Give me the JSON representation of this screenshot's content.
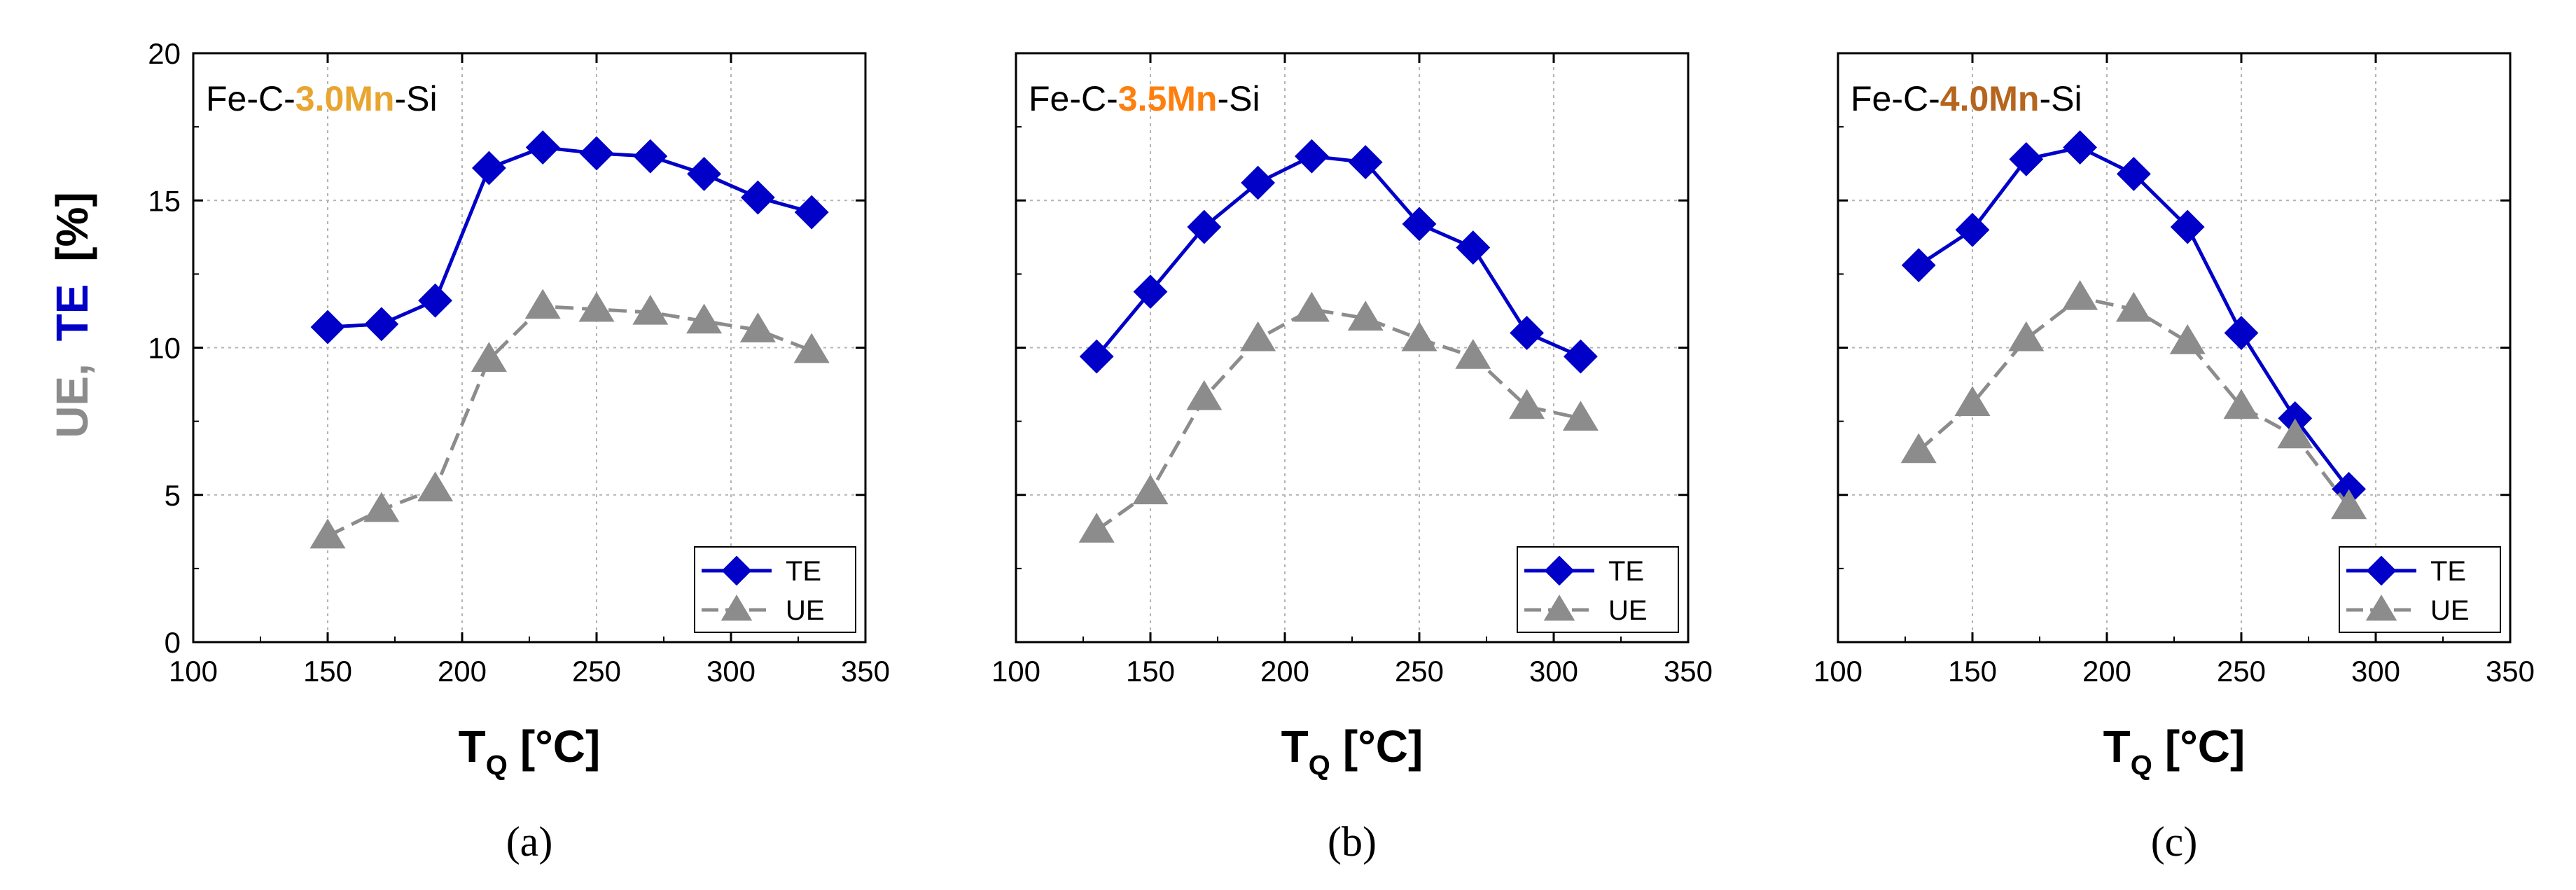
{
  "colors": {
    "te": "#0000c8",
    "ue": "#8c8c8c",
    "grid": "#b4b4b4",
    "mn30": "#e8a630",
    "mn35": "#ff7f0e",
    "mn40": "#b5651d"
  },
  "shared": {
    "ylabel_ue": "UE,",
    "ylabel_te": "TE",
    "ylabel_unit": "[%]",
    "xlabel_main": "T",
    "xlabel_sub": "Q",
    "xlabel_unit": "[°C]",
    "xticks": [
      "100",
      "150",
      "200",
      "250",
      "300",
      "350"
    ],
    "yticks": [
      "0",
      "5",
      "10",
      "15",
      "20"
    ]
  },
  "chart_data": [
    {
      "type": "line",
      "panel_label": "(a)",
      "panel_letter": "a",
      "annotation": {
        "prefix": "Fe-C-",
        "highlight": "3.0Mn",
        "suffix": "-Si",
        "highlight_color": "#e8a630"
      },
      "xlabel": "TQ [°C]",
      "ylabel": "UE, TE [%]",
      "xlim": [
        100,
        350
      ],
      "ylim": [
        0,
        20
      ],
      "grid": true,
      "legend": "bottom-right",
      "series": [
        {
          "name": "TE",
          "marker": "diamond",
          "x": [
            150,
            170,
            190,
            210,
            230,
            250,
            270,
            290,
            310,
            330
          ],
          "y": [
            10.7,
            10.8,
            11.6,
            16.1,
            16.8,
            16.6,
            16.5,
            15.9,
            15.1,
            14.6
          ]
        },
        {
          "name": "UE",
          "marker": "triangle",
          "dashed": true,
          "x": [
            150,
            170,
            190,
            210,
            230,
            250,
            270,
            290,
            310,
            330
          ],
          "y": [
            3.6,
            4.5,
            5.2,
            9.6,
            11.4,
            11.3,
            11.2,
            10.9,
            10.6,
            9.9
          ]
        }
      ]
    },
    {
      "type": "line",
      "panel_label": "(b)",
      "panel_letter": "b",
      "annotation": {
        "prefix": "Fe-C-",
        "highlight": "3.5Mn",
        "suffix": "-Si",
        "highlight_color": "#ff7f0e"
      },
      "xlabel": "TQ [°C]",
      "ylabel": "UE, TE [%]",
      "xlim": [
        100,
        350
      ],
      "ylim": [
        0,
        20
      ],
      "grid": true,
      "legend": "bottom-right",
      "series": [
        {
          "name": "TE",
          "marker": "diamond",
          "x": [
            130,
            150,
            170,
            190,
            210,
            230,
            250,
            270,
            290,
            310
          ],
          "y": [
            9.7,
            11.9,
            14.1,
            15.6,
            16.5,
            16.3,
            14.2,
            13.4,
            10.5,
            9.7
          ]
        },
        {
          "name": "UE",
          "marker": "triangle",
          "dashed": true,
          "x": [
            130,
            150,
            170,
            190,
            210,
            230,
            250,
            270,
            290,
            310
          ],
          "y": [
            3.8,
            5.1,
            8.3,
            10.3,
            11.3,
            11.0,
            10.3,
            9.7,
            8.0,
            7.6
          ]
        }
      ]
    },
    {
      "type": "line",
      "panel_label": "(c)",
      "panel_letter": "c",
      "annotation": {
        "prefix": "Fe-C-",
        "highlight": "4.0Mn",
        "suffix": "-Si",
        "highlight_color": "#b5651d"
      },
      "xlabel": "TQ [°C]",
      "ylabel": "UE, TE [%]",
      "xlim": [
        100,
        350
      ],
      "ylim": [
        0,
        20
      ],
      "grid": true,
      "legend": "bottom-right",
      "series": [
        {
          "name": "TE",
          "marker": "diamond",
          "x": [
            130,
            150,
            170,
            190,
            210,
            230,
            250,
            270,
            290
          ],
          "y": [
            12.8,
            14.0,
            16.4,
            16.8,
            15.9,
            14.1,
            10.5,
            7.6,
            5.2
          ]
        },
        {
          "name": "UE",
          "marker": "triangle",
          "dashed": true,
          "x": [
            130,
            150,
            170,
            190,
            210,
            230,
            250,
            270,
            290
          ],
          "y": [
            6.5,
            8.1,
            10.3,
            11.7,
            11.3,
            10.2,
            8.0,
            7.0,
            4.6
          ]
        }
      ]
    }
  ]
}
